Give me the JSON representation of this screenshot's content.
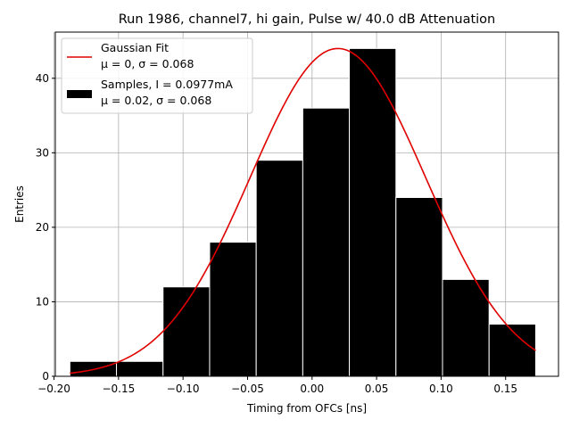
{
  "chart_data": {
    "type": "bar",
    "title": "Run 1986, channel7, hi gain, Pulse w/ 40.0 dB Attenuation",
    "xlabel": "Timing from OFCs [ns]",
    "ylabel": "Entries",
    "xlim": [
      -0.199,
      0.191
    ],
    "ylim": [
      0,
      46.2
    ],
    "xticks": [
      -0.2,
      -0.15,
      -0.1,
      -0.05,
      0.0,
      0.05,
      0.1,
      0.15
    ],
    "xtick_labels": [
      "−0.20",
      "−0.15",
      "−0.10",
      "−0.05",
      "0.00",
      "0.05",
      "0.10",
      "0.15"
    ],
    "yticks": [
      0,
      10,
      20,
      30,
      40
    ],
    "ytick_labels": [
      "0",
      "10",
      "20",
      "30",
      "40"
    ],
    "grid": true,
    "legend_position": "upper left",
    "histogram": {
      "name": "Samples, I = 0.0977mA",
      "stats_label": "μ = 0.02, σ = 0.068",
      "color": "#000000",
      "bin_edges": [
        -0.1877,
        -0.1516,
        -0.1155,
        -0.0794,
        -0.0433,
        -0.0072,
        0.0289,
        0.065,
        0.1011,
        0.1372,
        0.1733
      ],
      "counts": [
        2,
        2,
        12,
        18,
        29,
        36,
        44,
        24,
        13,
        7
      ]
    },
    "fit": {
      "name": "Gaussian Fit",
      "stats_label": "μ = 0, σ = 0.068",
      "color": "#e00000",
      "center": 0.02,
      "sigma": 0.068,
      "amplitude": 44,
      "x_range": [
        -0.1877,
        0.1733
      ]
    }
  }
}
